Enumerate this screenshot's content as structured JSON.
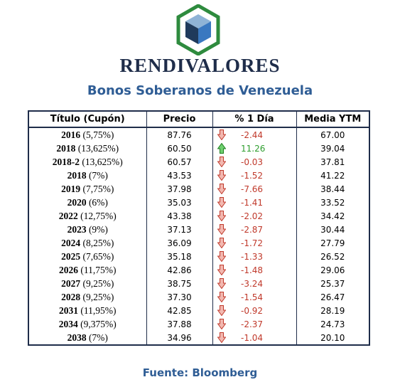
{
  "brand": "RENDIVALORES",
  "subtitle": "Bonos Soberanos de Venezuela",
  "colors": {
    "brand": "#1f2d4a",
    "accent": "#2f5d95",
    "down": "#c0392b",
    "up": "#2e9e2e",
    "logo_frame": "#2e8b3e"
  },
  "logo_icon": "cube-logo-icon",
  "headers": {
    "titulo": "Título (Cupón)",
    "precio": "Precio",
    "pct": "% 1 Día",
    "ytm": "Media YTM"
  },
  "rows": [
    {
      "year": "2016",
      "coupon": "(5,75%)",
      "precio": "87.76",
      "dir": "down",
      "pct": "-2.44",
      "ytm": "67.00"
    },
    {
      "year": "2018",
      "coupon": "(13,625%)",
      "precio": "60.50",
      "dir": "up",
      "pct": "11.26",
      "ytm": "39.04"
    },
    {
      "year": "2018-2",
      "coupon": "(13,625%)",
      "precio": "60.57",
      "dir": "down",
      "pct": "-0.03",
      "ytm": "37.81"
    },
    {
      "year": "2018",
      "coupon": "(7%)",
      "precio": "43.53",
      "dir": "down",
      "pct": "-1.52",
      "ytm": "41.22"
    },
    {
      "year": "2019",
      "coupon": "(7,75%)",
      "precio": "37.98",
      "dir": "down",
      "pct": "-7.66",
      "ytm": "38.44"
    },
    {
      "year": "2020",
      "coupon": "(6%)",
      "precio": "35.03",
      "dir": "down",
      "pct": "-1.41",
      "ytm": "33.52"
    },
    {
      "year": "2022",
      "coupon": "(12,75%)",
      "precio": "43.38",
      "dir": "down",
      "pct": "-2.02",
      "ytm": "34.42"
    },
    {
      "year": "2023",
      "coupon": "(9%)",
      "precio": "37.13",
      "dir": "down",
      "pct": "-2.87",
      "ytm": "30.44"
    },
    {
      "year": "2024",
      "coupon": "(8,25%)",
      "precio": "36.09",
      "dir": "down",
      "pct": "-1.72",
      "ytm": "27.79"
    },
    {
      "year": "2025",
      "coupon": "(7,65%)",
      "precio": "35.18",
      "dir": "down",
      "pct": "-1.33",
      "ytm": "26.52"
    },
    {
      "year": "2026",
      "coupon": "(11,75%)",
      "precio": "42.86",
      "dir": "down",
      "pct": "-1.48",
      "ytm": "29.06"
    },
    {
      "year": "2027",
      "coupon": "(9,25%)",
      "precio": "38.75",
      "dir": "down",
      "pct": "-3.24",
      "ytm": "25.37"
    },
    {
      "year": "2028",
      "coupon": "(9,25%)",
      "precio": "37.30",
      "dir": "down",
      "pct": "-1.54",
      "ytm": "26.47"
    },
    {
      "year": "2031",
      "coupon": "(11,95%)",
      "precio": "42.85",
      "dir": "down",
      "pct": "-0.92",
      "ytm": "28.19"
    },
    {
      "year": "2034",
      "coupon": "(9,375%)",
      "precio": "37.88",
      "dir": "down",
      "pct": "-2.37",
      "ytm": "24.73"
    },
    {
      "year": "2038",
      "coupon": "(7%)",
      "precio": "34.96",
      "dir": "down",
      "pct": "-1.04",
      "ytm": "20.10"
    }
  ],
  "source": "Fuente: Bloomberg"
}
